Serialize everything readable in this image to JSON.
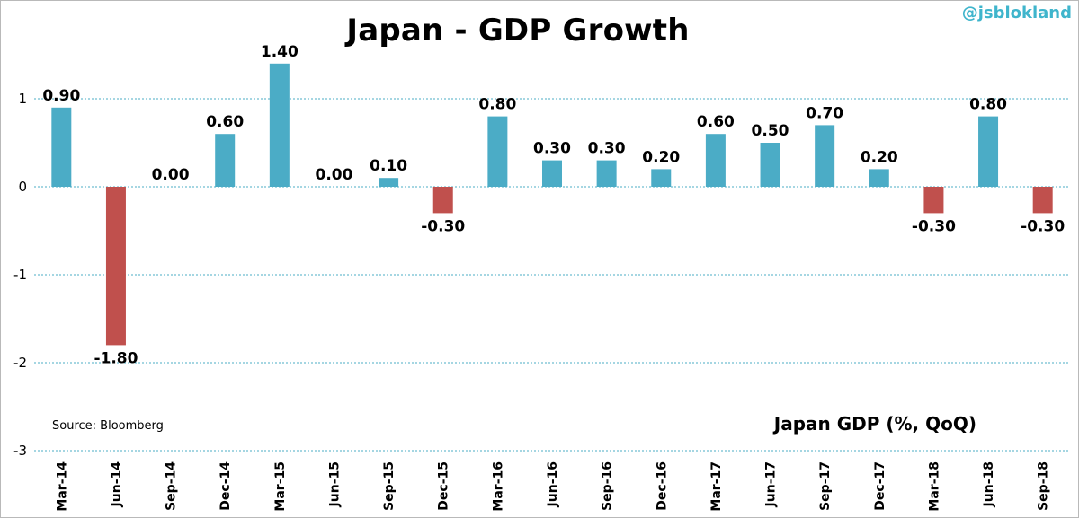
{
  "watermark": "@jsblokland",
  "chart_data": {
    "type": "bar",
    "title": "Japan - GDP Growth",
    "series_label": "Japan GDP (%, QoQ)",
    "source": "Source:  Bloomberg",
    "categories": [
      "Mar-14",
      "Jun-14",
      "Sep-14",
      "Dec-14",
      "Mar-15",
      "Jun-15",
      "Sep-15",
      "Dec-15",
      "Mar-16",
      "Jun-16",
      "Sep-16",
      "Dec-16",
      "Mar-17",
      "Jun-17",
      "Sep-17",
      "Dec-17",
      "Mar-18",
      "Jun-18",
      "Sep-18"
    ],
    "values": [
      0.9,
      -1.8,
      0.0,
      0.6,
      1.4,
      0.0,
      0.1,
      -0.3,
      0.8,
      0.3,
      0.3,
      0.2,
      0.6,
      0.5,
      0.7,
      0.2,
      -0.3,
      0.8,
      -0.3
    ],
    "data_labels": [
      "0.90",
      "-1.80",
      "0.00",
      "0.60",
      "1.40",
      "0.00",
      "0.10",
      "-0.30",
      "0.80",
      "0.30",
      "0.30",
      "0.20",
      "0.60",
      "0.50",
      "0.70",
      "0.20",
      "-0.30",
      "0.80",
      "-0.30"
    ],
    "ylim": [
      -3,
      1.4
    ],
    "yticks": [
      1,
      0,
      -1,
      -2,
      -3
    ],
    "ytick_labels": [
      "1",
      "0",
      "-1",
      "-2",
      "-3"
    ],
    "grid": true,
    "colors": {
      "positive": "#4bacc6",
      "negative": "#c0504d",
      "gridline": "#4bacc6"
    }
  }
}
